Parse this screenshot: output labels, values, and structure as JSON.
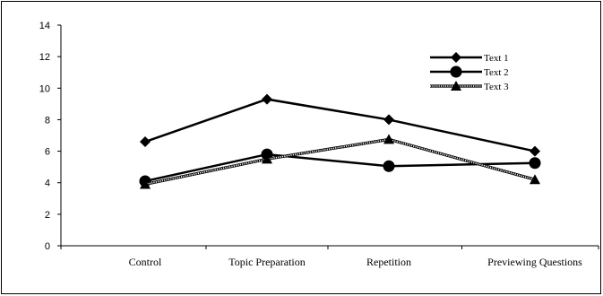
{
  "chart_data": {
    "type": "line",
    "title": "",
    "xlabel": "",
    "ylabel": "",
    "categories": [
      "Control",
      "Topic Preparation",
      "Repetition",
      "Previewing Questions"
    ],
    "ylim": [
      0,
      14
    ],
    "yticks": [
      0,
      2,
      4,
      6,
      8,
      10,
      12,
      14
    ],
    "grid": false,
    "legend_position": "top-right",
    "series": [
      {
        "name": "Text 1",
        "values": [
          6.6,
          9.3,
          8.0,
          6.0
        ],
        "color": "#000000",
        "marker": "diamond",
        "line": "solid"
      },
      {
        "name": "Text 2",
        "values": [
          4.1,
          5.8,
          5.05,
          5.25
        ],
        "color": "#000000",
        "marker": "circle",
        "line": "solid"
      },
      {
        "name": "Text 3",
        "values": [
          3.9,
          5.5,
          6.75,
          4.2
        ],
        "color": "#000000",
        "marker": "triangle",
        "line": "dotted"
      }
    ]
  }
}
